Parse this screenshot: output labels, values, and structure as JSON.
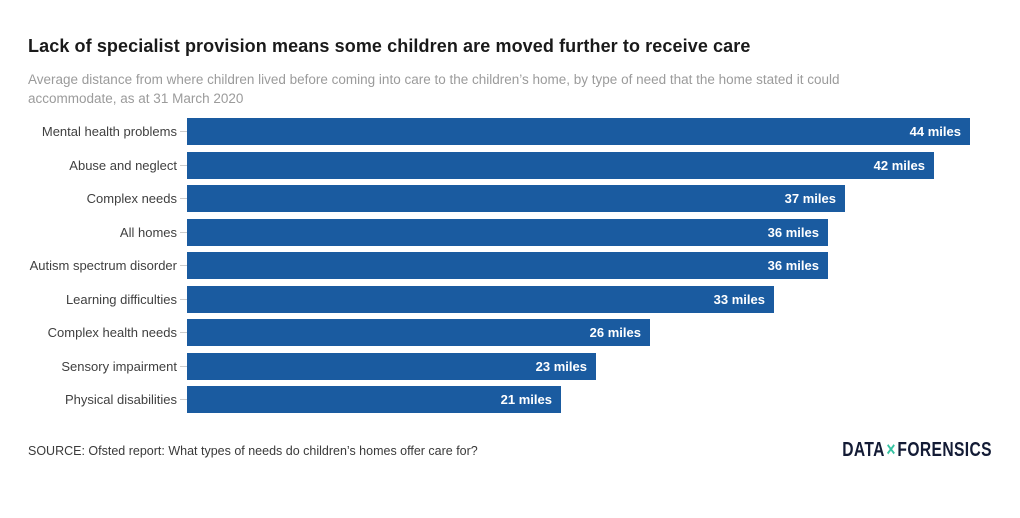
{
  "title": "Lack of specialist provision means some children are moved further to receive care",
  "subtitle": "Average distance from where children lived before coming into care to the children’s home, by type of need that the home stated it could accommodate, as at 31 March 2020",
  "chart_data": {
    "type": "bar",
    "orientation": "horizontal",
    "categories": [
      "Mental health problems",
      "Abuse and neglect",
      "Complex needs",
      "All homes",
      "Autism spectrum disorder",
      "Learning difficulties",
      "Complex health needs",
      "Sensory impairment",
      "Physical disabilities"
    ],
    "values": [
      44,
      42,
      37,
      36,
      36,
      33,
      26,
      23,
      21
    ],
    "value_labels": [
      "44 miles",
      "42 miles",
      "37 miles",
      "36 miles",
      "36 miles",
      "33 miles",
      "26 miles",
      "23 miles",
      "21 miles"
    ],
    "unit": "miles",
    "xlim": [
      0,
      44
    ],
    "grid": false,
    "legend": "none",
    "value_labels_position": "inside-end"
  },
  "source": "SOURCE: Ofsted report: What types of needs do children’s homes offer care for?",
  "logo": {
    "part1": "DATA",
    "separator": "×",
    "part2": "FORENSICS"
  },
  "colors": {
    "bar": "#1a5ba0",
    "title_text": "#1a1a1a",
    "subtitle_text": "#9b9b9b",
    "category_label": "#404040",
    "bar_value_text": "#ffffff",
    "tick": "#cccccc",
    "source_text": "#3a3a3a",
    "logo_text": "#131b35",
    "logo_x": "#35c3a2",
    "background": "#ffffff"
  }
}
